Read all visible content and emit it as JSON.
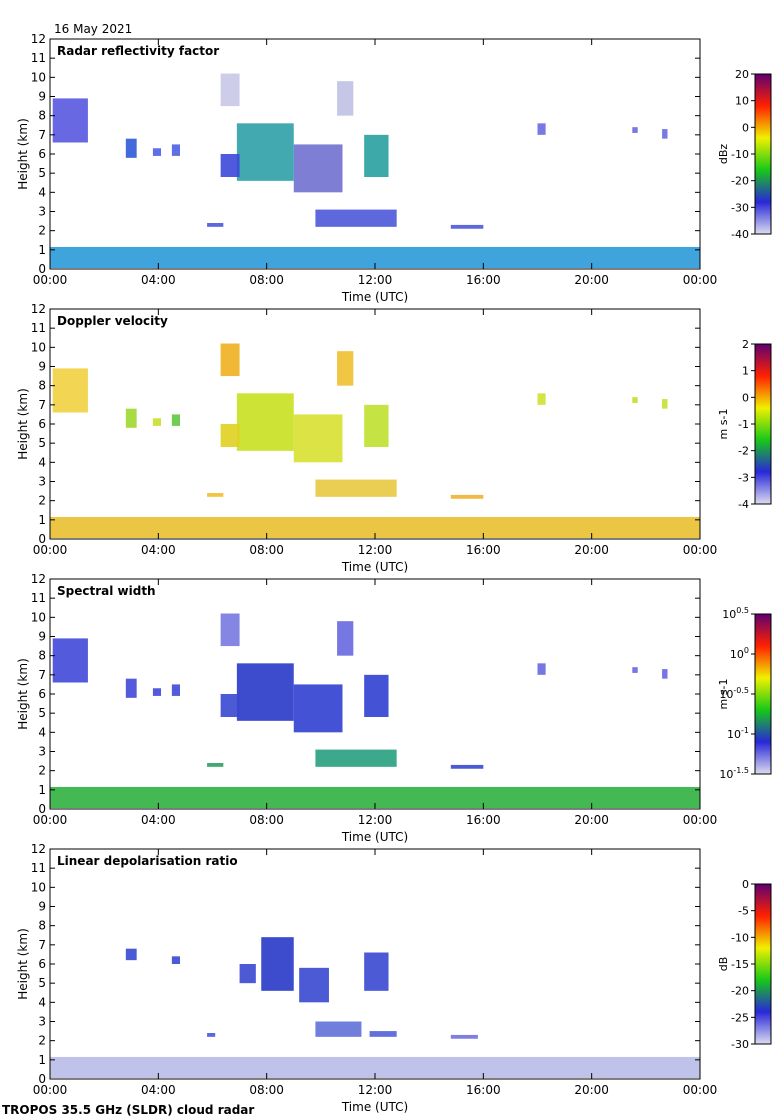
{
  "date_label": "16 May 2021",
  "footer_label": "TROPOS 35.5 GHz (SLDR) cloud radar",
  "chart_data": [
    {
      "type": "heatmap",
      "title": "Radar reflectivity factor",
      "xlabel": "Time (UTC)",
      "ylabel": "Height (km)",
      "x_ticks": [
        "00:00",
        "04:00",
        "08:00",
        "12:00",
        "16:00",
        "20:00",
        "00:00"
      ],
      "xlim": [
        0,
        24
      ],
      "y_ticks": [
        "0",
        "1",
        "2",
        "3",
        "4",
        "5",
        "6",
        "7",
        "8",
        "9",
        "10",
        "11",
        "12"
      ],
      "ylim": [
        0,
        12
      ],
      "colorbar": {
        "unit": "dBz",
        "ticks": [
          "20",
          "10",
          "0",
          "-10",
          "-20",
          "-30",
          "-40"
        ],
        "range": [
          -40,
          20
        ],
        "colors": [
          "#dcdcf0",
          "#2828d8",
          "#18c818",
          "#f0f000",
          "#ff2000",
          "#600070"
        ]
      },
      "cells": [
        {
          "t": [
            0.0,
            24.0
          ],
          "h": [
            0.05,
            1.15
          ],
          "c": "#2a9ad8"
        },
        {
          "t": [
            0.1,
            1.4
          ],
          "h": [
            6.6,
            8.9
          ],
          "c": "#5858e0"
        },
        {
          "t": [
            2.8,
            3.2
          ],
          "h": [
            5.8,
            6.8
          ],
          "c": "#2e5ad8"
        },
        {
          "t": [
            3.8,
            4.1
          ],
          "h": [
            5.9,
            6.3
          ],
          "c": "#4c60e0"
        },
        {
          "t": [
            4.5,
            4.8
          ],
          "h": [
            5.9,
            6.5
          ],
          "c": "#4c60e0"
        },
        {
          "t": [
            6.3,
            7.0
          ],
          "h": [
            8.5,
            10.2
          ],
          "c": "#c8c8e8"
        },
        {
          "t": [
            6.9,
            9.0
          ],
          "h": [
            4.6,
            7.6
          ],
          "c": "#2ea0a8"
        },
        {
          "t": [
            6.3,
            7.0
          ],
          "h": [
            4.8,
            6.0
          ],
          "c": "#3c48d8"
        },
        {
          "t": [
            9.0,
            10.8
          ],
          "h": [
            4.0,
            6.5
          ],
          "c": "#7070d0"
        },
        {
          "t": [
            10.6,
            11.2
          ],
          "h": [
            8.0,
            9.8
          ],
          "c": "#c0c0e4"
        },
        {
          "t": [
            11.6,
            12.5
          ],
          "h": [
            4.8,
            7.0
          ],
          "c": "#28a0a0"
        },
        {
          "t": [
            9.8,
            12.8
          ],
          "h": [
            2.2,
            3.1
          ],
          "c": "#4a58d8"
        },
        {
          "t": [
            5.8,
            6.4
          ],
          "h": [
            2.2,
            2.4
          ],
          "c": "#4a58d8"
        },
        {
          "t": [
            14.8,
            16.0
          ],
          "h": [
            2.1,
            2.3
          ],
          "c": "#4a58d8"
        },
        {
          "t": [
            18.0,
            18.3
          ],
          "h": [
            7.0,
            7.6
          ],
          "c": "#6a6ae0"
        },
        {
          "t": [
            21.5,
            21.7
          ],
          "h": [
            7.1,
            7.4
          ],
          "c": "#6a6ae0"
        },
        {
          "t": [
            22.6,
            22.8
          ],
          "h": [
            6.8,
            7.3
          ],
          "c": "#6a6ae0"
        }
      ]
    },
    {
      "type": "heatmap",
      "title": "Doppler velocity",
      "xlabel": "Time (UTC)",
      "ylabel": "Height (km)",
      "x_ticks": [
        "00:00",
        "04:00",
        "08:00",
        "12:00",
        "16:00",
        "20:00",
        "00:00"
      ],
      "xlim": [
        0,
        24
      ],
      "y_ticks": [
        "0",
        "1",
        "2",
        "3",
        "4",
        "5",
        "6",
        "7",
        "8",
        "9",
        "10",
        "11",
        "12"
      ],
      "ylim": [
        0,
        12
      ],
      "colorbar": {
        "unit": "m s-1",
        "ticks": [
          "2",
          "1",
          "0",
          "-1",
          "-2",
          "-3",
          "-4"
        ],
        "range": [
          -4,
          2
        ],
        "colors": [
          "#dcdcf0",
          "#2828d8",
          "#18c818",
          "#f0f000",
          "#ff2000",
          "#600070"
        ]
      },
      "cells": [
        {
          "t": [
            0.0,
            24.0
          ],
          "h": [
            0.05,
            1.15
          ],
          "c": "#e8c030"
        },
        {
          "t": [
            0.1,
            1.4
          ],
          "h": [
            6.6,
            8.9
          ],
          "c": "#f0d040"
        },
        {
          "t": [
            2.8,
            3.2
          ],
          "h": [
            5.8,
            6.8
          ],
          "c": "#a0d830"
        },
        {
          "t": [
            3.8,
            4.1
          ],
          "h": [
            5.9,
            6.3
          ],
          "c": "#c8e030"
        },
        {
          "t": [
            4.5,
            4.8
          ],
          "h": [
            5.9,
            6.5
          ],
          "c": "#60c840"
        },
        {
          "t": [
            6.3,
            7.0
          ],
          "h": [
            8.5,
            10.2
          ],
          "c": "#f0b020"
        },
        {
          "t": [
            6.9,
            9.0
          ],
          "h": [
            4.6,
            7.6
          ],
          "c": "#c8e020"
        },
        {
          "t": [
            6.3,
            7.0
          ],
          "h": [
            4.8,
            6.0
          ],
          "c": "#e0d020"
        },
        {
          "t": [
            9.0,
            10.8
          ],
          "h": [
            4.0,
            6.5
          ],
          "c": "#d8e030"
        },
        {
          "t": [
            10.6,
            11.2
          ],
          "h": [
            8.0,
            9.8
          ],
          "c": "#f0c030"
        },
        {
          "t": [
            11.6,
            12.5
          ],
          "h": [
            4.8,
            7.0
          ],
          "c": "#c0e030"
        },
        {
          "t": [
            9.8,
            12.8
          ],
          "h": [
            2.2,
            3.1
          ],
          "c": "#e8c840"
        },
        {
          "t": [
            5.8,
            6.4
          ],
          "h": [
            2.2,
            2.4
          ],
          "c": "#f0c030"
        },
        {
          "t": [
            14.8,
            16.0
          ],
          "h": [
            2.1,
            2.3
          ],
          "c": "#f0b030"
        },
        {
          "t": [
            18.0,
            18.3
          ],
          "h": [
            7.0,
            7.6
          ],
          "c": "#d0e030"
        },
        {
          "t": [
            21.5,
            21.7
          ],
          "h": [
            7.1,
            7.4
          ],
          "c": "#c0e030"
        },
        {
          "t": [
            22.6,
            22.8
          ],
          "h": [
            6.8,
            7.3
          ],
          "c": "#c8e030"
        }
      ]
    },
    {
      "type": "heatmap",
      "title": "Spectral width",
      "xlabel": "Time (UTC)",
      "ylabel": "Height (km)",
      "x_ticks": [
        "00:00",
        "04:00",
        "08:00",
        "12:00",
        "16:00",
        "20:00",
        "00:00"
      ],
      "xlim": [
        0,
        24
      ],
      "y_ticks": [
        "0",
        "1",
        "2",
        "3",
        "4",
        "5",
        "6",
        "7",
        "8",
        "9",
        "10",
        "11",
        "12"
      ],
      "ylim": [
        0,
        12
      ],
      "colorbar": {
        "unit": "m s-1",
        "ticks": [
          "10^0.5",
          "10^0",
          "10^-0.5",
          "10^-1",
          "10^-1.5"
        ],
        "range": [
          -1.5,
          0.5
        ],
        "colors": [
          "#dcdcf0",
          "#2828d8",
          "#18c818",
          "#f0f000",
          "#ff2000",
          "#600070"
        ]
      },
      "cells": [
        {
          "t": [
            0.0,
            24.0
          ],
          "h": [
            0.05,
            1.15
          ],
          "c": "#30b040"
        },
        {
          "t": [
            0.1,
            1.4
          ],
          "h": [
            6.6,
            8.9
          ],
          "c": "#4048d8"
        },
        {
          "t": [
            2.8,
            3.2
          ],
          "h": [
            5.8,
            6.8
          ],
          "c": "#4048d8"
        },
        {
          "t": [
            3.8,
            4.1
          ],
          "h": [
            5.9,
            6.3
          ],
          "c": "#4048d8"
        },
        {
          "t": [
            4.5,
            4.8
          ],
          "h": [
            5.9,
            6.5
          ],
          "c": "#4048d8"
        },
        {
          "t": [
            6.3,
            7.0
          ],
          "h": [
            8.5,
            10.2
          ],
          "c": "#7878e0"
        },
        {
          "t": [
            6.9,
            9.0
          ],
          "h": [
            4.6,
            7.6
          ],
          "c": "#2838c8"
        },
        {
          "t": [
            6.3,
            7.0
          ],
          "h": [
            4.8,
            6.0
          ],
          "c": "#3848d0"
        },
        {
          "t": [
            9.0,
            10.8
          ],
          "h": [
            4.0,
            6.5
          ],
          "c": "#3040d0"
        },
        {
          "t": [
            10.6,
            11.2
          ],
          "h": [
            8.0,
            9.8
          ],
          "c": "#6868e0"
        },
        {
          "t": [
            11.6,
            12.5
          ],
          "h": [
            4.8,
            7.0
          ],
          "c": "#3040d0"
        },
        {
          "t": [
            9.8,
            12.8
          ],
          "h": [
            2.2,
            3.1
          ],
          "c": "#28a080"
        },
        {
          "t": [
            5.8,
            6.4
          ],
          "h": [
            2.2,
            2.4
          ],
          "c": "#30a060"
        },
        {
          "t": [
            14.8,
            16.0
          ],
          "h": [
            2.1,
            2.3
          ],
          "c": "#3848d0"
        },
        {
          "t": [
            18.0,
            18.3
          ],
          "h": [
            7.0,
            7.6
          ],
          "c": "#6868e0"
        },
        {
          "t": [
            21.5,
            21.7
          ],
          "h": [
            7.1,
            7.4
          ],
          "c": "#6868e0"
        },
        {
          "t": [
            22.6,
            22.8
          ],
          "h": [
            6.8,
            7.3
          ],
          "c": "#6868e0"
        }
      ]
    },
    {
      "type": "heatmap",
      "title": "Linear depolarisation ratio",
      "xlabel": "Time (UTC)",
      "ylabel": "Height (km)",
      "x_ticks": [
        "00:00",
        "04:00",
        "08:00",
        "12:00",
        "16:00",
        "20:00",
        "00:00"
      ],
      "xlim": [
        0,
        24
      ],
      "y_ticks": [
        "0",
        "1",
        "2",
        "3",
        "4",
        "5",
        "6",
        "7",
        "8",
        "9",
        "10",
        "11",
        "12"
      ],
      "ylim": [
        0,
        12
      ],
      "colorbar": {
        "unit": "dB",
        "ticks": [
          "0",
          "-5",
          "-10",
          "-15",
          "-20",
          "-25",
          "-30"
        ],
        "range": [
          -30,
          0
        ],
        "colors": [
          "#dcdcf0",
          "#2828d8",
          "#18c818",
          "#f0f000",
          "#ff2000",
          "#600070"
        ]
      },
      "cells": [
        {
          "t": [
            0.0,
            24.0
          ],
          "h": [
            0.05,
            1.15
          ],
          "c": "#b8bce8"
        },
        {
          "t": [
            2.8,
            3.2
          ],
          "h": [
            6.2,
            6.8
          ],
          "c": "#3848d0"
        },
        {
          "t": [
            4.5,
            4.8
          ],
          "h": [
            6.0,
            6.4
          ],
          "c": "#3848d0"
        },
        {
          "t": [
            7.8,
            9.0
          ],
          "h": [
            4.6,
            7.4
          ],
          "c": "#2838c8"
        },
        {
          "t": [
            7.0,
            7.6
          ],
          "h": [
            5.0,
            6.0
          ],
          "c": "#3848d0"
        },
        {
          "t": [
            9.2,
            10.3
          ],
          "h": [
            4.0,
            5.8
          ],
          "c": "#3848d0"
        },
        {
          "t": [
            11.6,
            12.5
          ],
          "h": [
            4.6,
            6.6
          ],
          "c": "#3848d0"
        },
        {
          "t": [
            9.8,
            11.5
          ],
          "h": [
            2.2,
            3.0
          ],
          "c": "#6070d8"
        },
        {
          "t": [
            11.8,
            12.8
          ],
          "h": [
            2.2,
            2.5
          ],
          "c": "#5060d8"
        },
        {
          "t": [
            14.8,
            15.8
          ],
          "h": [
            2.1,
            2.3
          ],
          "c": "#7070e0"
        },
        {
          "t": [
            5.8,
            6.1
          ],
          "h": [
            2.2,
            2.4
          ],
          "c": "#4858d8"
        }
      ]
    }
  ]
}
